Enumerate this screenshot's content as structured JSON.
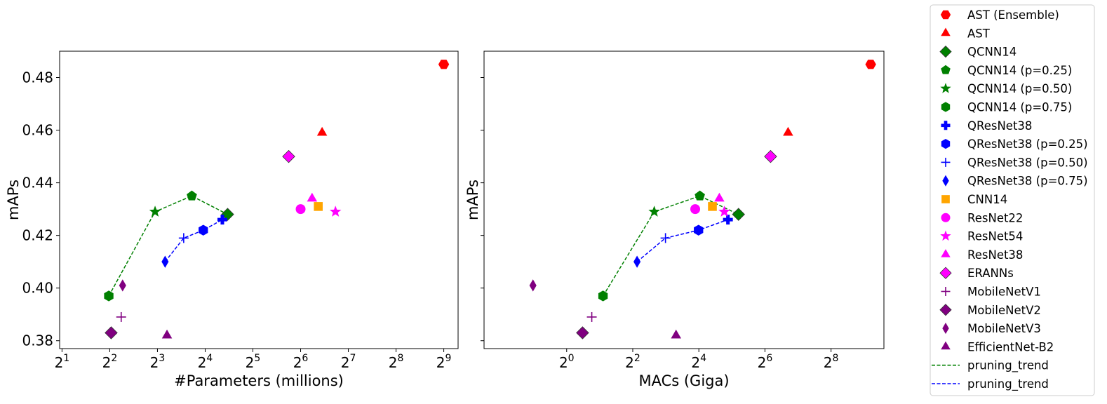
{
  "chart_data": [
    {
      "type": "scatter",
      "xscale": "log2",
      "xlabel": "#Parameters (millions)",
      "ylabel": "mAPs",
      "xlim_log2": [
        0.95,
        9.3
      ],
      "ylim": [
        0.377,
        0.49
      ],
      "xticks": [
        {
          "base": "2",
          "exp": "1",
          "log2": 1
        },
        {
          "base": "2",
          "exp": "2",
          "log2": 2
        },
        {
          "base": "2",
          "exp": "3",
          "log2": 3
        },
        {
          "base": "2",
          "exp": "4",
          "log2": 4
        },
        {
          "base": "2",
          "exp": "5",
          "log2": 5
        },
        {
          "base": "2",
          "exp": "6",
          "log2": 6
        },
        {
          "base": "2",
          "exp": "7",
          "log2": 7
        },
        {
          "base": "2",
          "exp": "8",
          "log2": 8
        },
        {
          "base": "2",
          "exp": "9",
          "log2": 9
        }
      ],
      "yticks": [
        {
          "value": 0.38,
          "label": "0.38"
        },
        {
          "value": 0.4,
          "label": "0.40"
        },
        {
          "value": 0.42,
          "label": "0.42"
        },
        {
          "value": 0.44,
          "label": "0.44"
        },
        {
          "value": 0.46,
          "label": "0.46"
        },
        {
          "value": 0.48,
          "label": "0.48"
        }
      ],
      "points": [
        {
          "series": "AST (Ensemble)",
          "x_log2": 9.0,
          "y": 0.485
        },
        {
          "series": "AST",
          "x_log2": 6.45,
          "y": 0.459
        },
        {
          "series": "QCNN14",
          "x_log2": 4.47,
          "y": 0.428
        },
        {
          "series": "QCNN14 (p=0.25)",
          "x_log2": 3.72,
          "y": 0.435
        },
        {
          "series": "QCNN14 (p=0.50)",
          "x_log2": 2.95,
          "y": 0.429
        },
        {
          "series": "QCNN14 (p=0.75)",
          "x_log2": 1.98,
          "y": 0.397
        },
        {
          "series": "QResNet38",
          "x_log2": 4.36,
          "y": 0.426
        },
        {
          "series": "QResNet38 (p=0.25)",
          "x_log2": 3.96,
          "y": 0.422
        },
        {
          "series": "QResNet38 (p=0.50)",
          "x_log2": 3.55,
          "y": 0.419
        },
        {
          "series": "QResNet38 (p=0.75)",
          "x_log2": 3.16,
          "y": 0.41
        },
        {
          "series": "CNN14",
          "x_log2": 6.37,
          "y": 0.431
        },
        {
          "series": "ResNet22",
          "x_log2": 6.0,
          "y": 0.43
        },
        {
          "series": "ResNet54",
          "x_log2": 6.73,
          "y": 0.429
        },
        {
          "series": "ResNet38",
          "x_log2": 6.24,
          "y": 0.434
        },
        {
          "series": "ERANNs",
          "x_log2": 5.75,
          "y": 0.45
        },
        {
          "series": "MobileNetV1",
          "x_log2": 2.24,
          "y": 0.389
        },
        {
          "series": "MobileNetV2",
          "x_log2": 2.03,
          "y": 0.383
        },
        {
          "series": "MobileNetV3",
          "x_log2": 2.27,
          "y": 0.401
        },
        {
          "series": "EfficientNet-B2",
          "x_log2": 3.2,
          "y": 0.382
        }
      ],
      "trends": [
        {
          "name": "pruning_trend",
          "color": "#008000",
          "series": [
            "QCNN14 (p=0.75)",
            "QCNN14 (p=0.50)",
            "QCNN14 (p=0.25)",
            "QCNN14"
          ]
        },
        {
          "name": "pruning_trend",
          "color": "#0000ff",
          "series": [
            "QResNet38 (p=0.75)",
            "QResNet38 (p=0.50)",
            "QResNet38 (p=0.25)",
            "QResNet38"
          ]
        }
      ]
    },
    {
      "type": "scatter",
      "xscale": "log2",
      "xlabel": "MACs (Giga)",
      "ylabel": "mAPs",
      "xlim_log2": [
        -2.5,
        9.6
      ],
      "ylim": [
        0.377,
        0.49
      ],
      "xticks": [
        {
          "base": "2",
          "exp": "0",
          "log2": 0
        },
        {
          "base": "2",
          "exp": "2",
          "log2": 2
        },
        {
          "base": "2",
          "exp": "4",
          "log2": 4
        },
        {
          "base": "2",
          "exp": "6",
          "log2": 6
        },
        {
          "base": "2",
          "exp": "8",
          "log2": 8
        }
      ],
      "yticks": [
        {
          "value": 0.38,
          "label": ""
        },
        {
          "value": 0.4,
          "label": ""
        },
        {
          "value": 0.42,
          "label": ""
        },
        {
          "value": 0.44,
          "label": ""
        },
        {
          "value": 0.46,
          "label": ""
        },
        {
          "value": 0.48,
          "label": ""
        }
      ],
      "points": [
        {
          "series": "AST (Ensemble)",
          "x_log2": 9.2,
          "y": 0.485
        },
        {
          "series": "AST",
          "x_log2": 6.7,
          "y": 0.459
        },
        {
          "series": "QCNN14",
          "x_log2": 5.2,
          "y": 0.428
        },
        {
          "series": "QCNN14 (p=0.25)",
          "x_log2": 4.03,
          "y": 0.435
        },
        {
          "series": "QCNN14 (p=0.50)",
          "x_log2": 2.65,
          "y": 0.429
        },
        {
          "series": "QCNN14 (p=0.75)",
          "x_log2": 1.1,
          "y": 0.397
        },
        {
          "series": "QResNet38",
          "x_log2": 4.88,
          "y": 0.426
        },
        {
          "series": "QResNet38 (p=0.25)",
          "x_log2": 3.99,
          "y": 0.422
        },
        {
          "series": "QResNet38 (p=0.50)",
          "x_log2": 2.99,
          "y": 0.419
        },
        {
          "series": "QResNet38 (p=0.75)",
          "x_log2": 2.13,
          "y": 0.41
        },
        {
          "series": "CNN14",
          "x_log2": 4.41,
          "y": 0.431
        },
        {
          "series": "ResNet22",
          "x_log2": 3.89,
          "y": 0.43
        },
        {
          "series": "ResNet54",
          "x_log2": 4.77,
          "y": 0.429
        },
        {
          "series": "ResNet38",
          "x_log2": 4.62,
          "y": 0.434
        },
        {
          "series": "ERANNs",
          "x_log2": 6.17,
          "y": 0.45
        },
        {
          "series": "MobileNetV1",
          "x_log2": 0.76,
          "y": 0.389
        },
        {
          "series": "MobileNetV2",
          "x_log2": 0.48,
          "y": 0.383
        },
        {
          "series": "MobileNetV3",
          "x_log2": -1.02,
          "y": 0.401
        },
        {
          "series": "EfficientNet-B2",
          "x_log2": 3.31,
          "y": 0.382
        }
      ],
      "trends": [
        {
          "name": "pruning_trend",
          "color": "#008000",
          "series": [
            "QCNN14 (p=0.75)",
            "QCNN14 (p=0.50)",
            "QCNN14 (p=0.25)",
            "QCNN14"
          ]
        },
        {
          "name": "pruning_trend",
          "color": "#0000ff",
          "series": [
            "QResNet38 (p=0.75)",
            "QResNet38 (p=0.50)",
            "QResNet38 (p=0.25)",
            "QResNet38"
          ]
        }
      ]
    }
  ],
  "legend": {
    "placement": "right-outside",
    "entries": [
      {
        "label": "AST (Ensemble)",
        "marker": "hexagon2",
        "color": "#ff0000"
      },
      {
        "label": "AST",
        "marker": "triangle",
        "color": "#ff0000"
      },
      {
        "label": "QCNN14",
        "marker": "diamond",
        "color": "#008000"
      },
      {
        "label": "QCNN14 (p=0.25)",
        "marker": "pentagon",
        "color": "#008000"
      },
      {
        "label": "QCNN14 (p=0.50)",
        "marker": "star",
        "color": "#008000"
      },
      {
        "label": "QCNN14 (p=0.75)",
        "marker": "hexagon",
        "color": "#008000"
      },
      {
        "label": "QResNet38",
        "marker": "pluscross",
        "color": "#0000ff"
      },
      {
        "label": "QResNet38 (p=0.25)",
        "marker": "hexagon",
        "color": "#0000ff"
      },
      {
        "label": "QResNet38 (p=0.50)",
        "marker": "plus",
        "color": "#0000ff"
      },
      {
        "label": "QResNet38 (p=0.75)",
        "marker": "thindiamond",
        "color": "#0000ff"
      },
      {
        "label": "CNN14",
        "marker": "square",
        "color": "#ffa500"
      },
      {
        "label": "ResNet22",
        "marker": "circle",
        "color": "#ff00ff"
      },
      {
        "label": "ResNet54",
        "marker": "star",
        "color": "#ff00ff"
      },
      {
        "label": "ResNet38",
        "marker": "triangle",
        "color": "#ff00ff"
      },
      {
        "label": "ERANNs",
        "marker": "diamond",
        "color": "#ff00ff"
      },
      {
        "label": "MobileNetV1",
        "marker": "plus",
        "color": "#800080"
      },
      {
        "label": "MobileNetV2",
        "marker": "diamond",
        "color": "#800080"
      },
      {
        "label": "MobileNetV3",
        "marker": "thindiamond",
        "color": "#800080"
      },
      {
        "label": "EfficientNet-B2",
        "marker": "triangle",
        "color": "#800080"
      },
      {
        "label": "pruning_trend",
        "marker": "dashline",
        "color": "#008000"
      },
      {
        "label": "pruning_trend",
        "marker": "dashline",
        "color": "#0000ff"
      }
    ]
  }
}
